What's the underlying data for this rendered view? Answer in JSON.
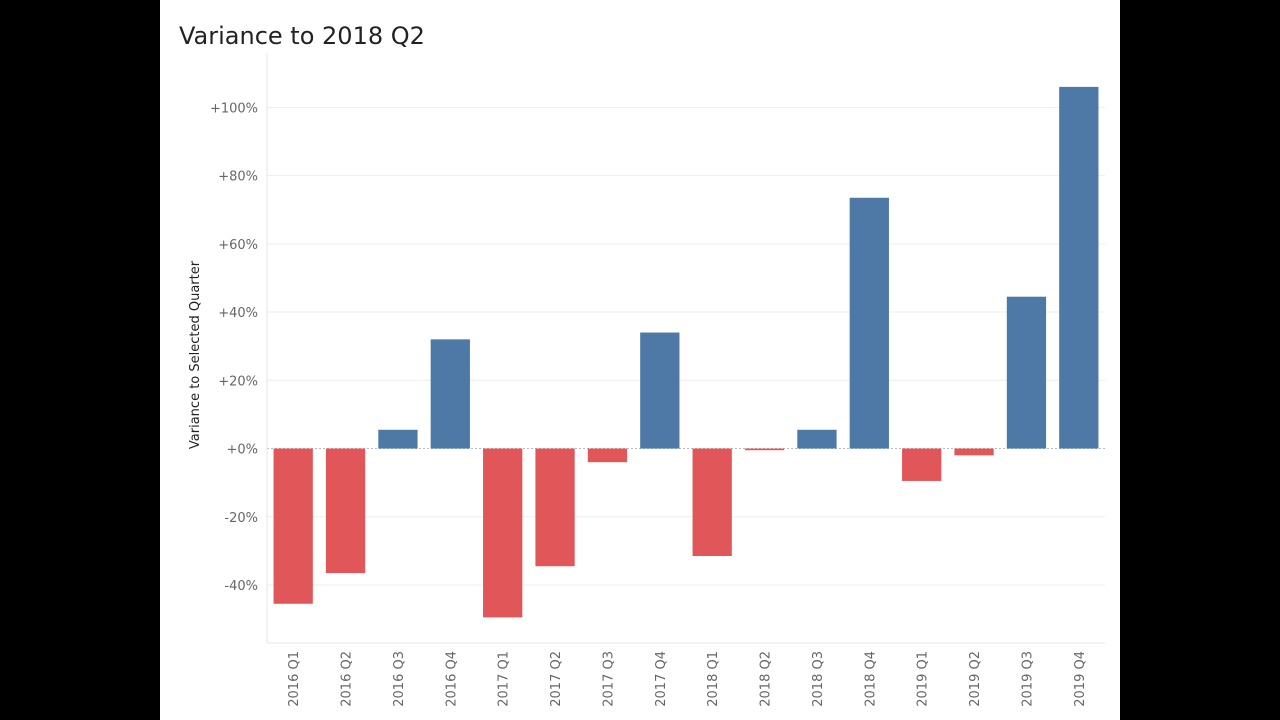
{
  "chart_data": {
    "type": "bar",
    "title": "Variance to 2018 Q2",
    "xlabel": "",
    "ylabel": "Variance to Selected Quarter",
    "categories": [
      "2016 Q1",
      "2016 Q2",
      "2016 Q3",
      "2016 Q4",
      "2017 Q1",
      "2017 Q2",
      "2017 Q3",
      "2017 Q4",
      "2018 Q1",
      "2018 Q2",
      "2018 Q3",
      "2018 Q4",
      "2019 Q1",
      "2019 Q2",
      "2019 Q3",
      "2019 Q4"
    ],
    "values": [
      -45.5,
      -36.5,
      5.5,
      32,
      -49.5,
      -34.5,
      -4,
      34,
      -31.5,
      -0.5,
      5.5,
      73.5,
      -9.5,
      -2,
      44.5,
      106
    ],
    "ylim": [
      -57,
      113
    ],
    "yticks": [
      {
        "value": 100,
        "label": "+100%"
      },
      {
        "value": 80,
        "label": "+80%"
      },
      {
        "value": 60,
        "label": "+60%"
      },
      {
        "value": 40,
        "label": "+40%"
      },
      {
        "value": 20,
        "label": "+20%"
      },
      {
        "value": 0,
        "label": "+0%"
      },
      {
        "value": -20,
        "label": "-20%"
      },
      {
        "value": -40,
        "label": "-40%"
      }
    ],
    "grid": true,
    "colors": {
      "positive": "#4e79a7",
      "negative": "#e15759",
      "grid": "#eeeeee",
      "zero_line": "#bbbbbb"
    }
  }
}
